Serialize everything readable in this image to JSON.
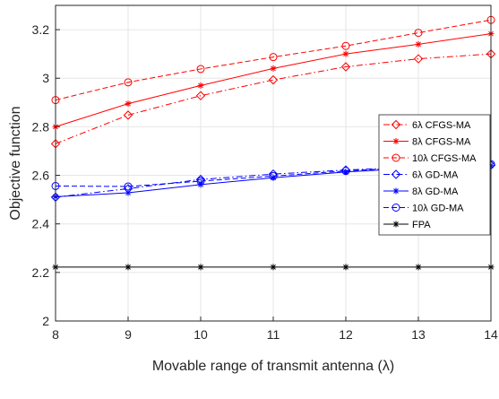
{
  "chart_data": {
    "type": "line",
    "xlabel": "Movable range of transmit antenna (λ)",
    "ylabel": "Objective function",
    "x": [
      8,
      9,
      10,
      11,
      12,
      13,
      14
    ],
    "xlim": [
      8,
      14
    ],
    "ylim": [
      2,
      3.3
    ],
    "xticks": [
      "8",
      "9",
      "10",
      "11",
      "12",
      "13",
      "14"
    ],
    "yticks": [
      {
        "value": 2,
        "label": "2"
      },
      {
        "value": 2.2,
        "label": "2.2"
      },
      {
        "value": 2.4,
        "label": "2.4"
      },
      {
        "value": 2.6,
        "label": "2.6"
      },
      {
        "value": 2.8,
        "label": "2.8"
      },
      {
        "value": 3,
        "label": "3"
      },
      {
        "value": 3.2,
        "label": "3.2"
      }
    ],
    "grid": true,
    "legend_position": "right",
    "series": [
      {
        "name": "6λ CFGS-MA",
        "color": "#ff0000",
        "dash": "dashdot",
        "marker": "diamond",
        "values": [
          2.73,
          2.848,
          2.928,
          2.993,
          3.047,
          3.08,
          3.1
        ]
      },
      {
        "name": "8λ CFGS-MA",
        "color": "#ff0000",
        "dash": "solid",
        "marker": "star",
        "values": [
          2.8,
          2.895,
          2.97,
          3.04,
          3.1,
          3.14,
          3.183
        ]
      },
      {
        "name": "10λ CFGS-MA",
        "color": "#ff0000",
        "dash": "dashed",
        "marker": "circle",
        "values": [
          2.91,
          2.983,
          3.038,
          3.087,
          3.133,
          3.187,
          3.24
        ]
      },
      {
        "name": "6λ GD-MA",
        "color": "#0000ff",
        "dash": "dashdot",
        "marker": "diamond",
        "values": [
          2.51,
          2.545,
          2.583,
          2.605,
          2.622,
          2.634,
          2.642
        ]
      },
      {
        "name": "8λ GD-MA",
        "color": "#0000ff",
        "dash": "solid",
        "marker": "star",
        "values": [
          2.512,
          2.528,
          2.562,
          2.59,
          2.614,
          2.63,
          2.64
        ]
      },
      {
        "name": "10λ GD-MA",
        "color": "#0000ff",
        "dash": "dashed",
        "marker": "circle",
        "values": [
          2.556,
          2.554,
          2.576,
          2.597,
          2.618,
          2.634,
          2.646
        ]
      },
      {
        "name": "FPA",
        "color": "#000000",
        "dash": "solid",
        "marker": "star",
        "values": [
          2.222,
          2.222,
          2.222,
          2.222,
          2.222,
          2.222,
          2.222
        ]
      }
    ]
  }
}
